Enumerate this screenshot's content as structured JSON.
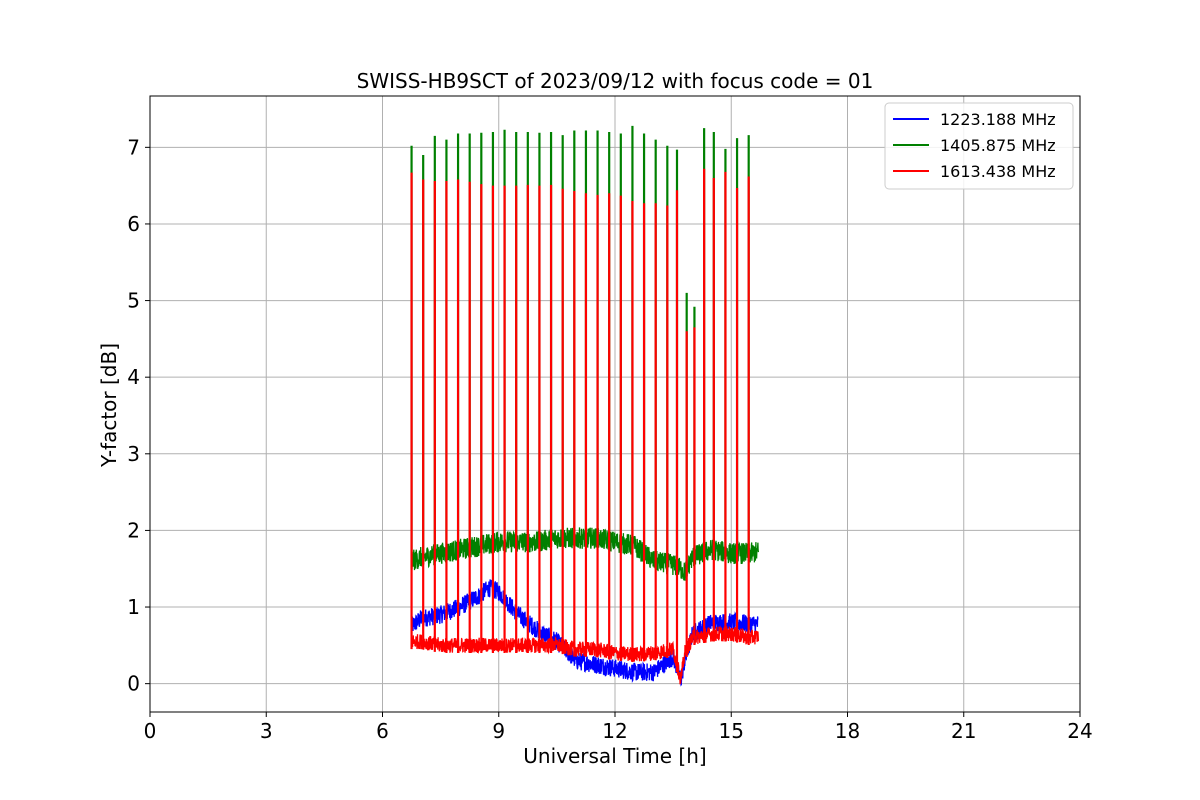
{
  "chart_data": {
    "type": "line",
    "title": "SWISS-HB9SCT of 2023/09/12 with focus code = 01",
    "xlabel": "Universal Time [h]",
    "ylabel": "Y-factor [dB]",
    "xlim": [
      0,
      24
    ],
    "ylim": [
      -0.37,
      7.67
    ],
    "xticks": [
      0,
      3,
      6,
      9,
      12,
      15,
      18,
      21,
      24
    ],
    "yticks": [
      0,
      1,
      2,
      3,
      4,
      5,
      6,
      7
    ],
    "grid": true,
    "legend_position": "top-right",
    "series": [
      {
        "name": "1223.188 MHz",
        "color": "#0000ff",
        "x": [
          6.75,
          7.0,
          7.5,
          8.0,
          8.5,
          8.75,
          9.0,
          9.5,
          10.0,
          10.5,
          11.0,
          11.5,
          12.0,
          12.5,
          13.0,
          13.5,
          13.7,
          13.8,
          14.0,
          14.5,
          15.0,
          15.5,
          15.7
        ],
        "values": [
          0.75,
          0.85,
          0.9,
          1.0,
          1.15,
          1.25,
          1.2,
          0.9,
          0.7,
          0.55,
          0.3,
          0.25,
          0.2,
          0.15,
          0.15,
          0.35,
          0.05,
          0.3,
          0.65,
          0.8,
          0.8,
          0.78,
          0.78
        ]
      },
      {
        "name": "1405.875 MHz",
        "color": "#008000",
        "x": [
          6.75,
          7.0,
          7.5,
          8.0,
          8.5,
          9.0,
          9.5,
          10.0,
          10.5,
          11.0,
          11.5,
          12.0,
          12.5,
          13.0,
          13.5,
          13.7,
          13.8,
          14.0,
          14.5,
          15.0,
          15.5,
          15.7
        ],
        "values": [
          1.6,
          1.65,
          1.7,
          1.75,
          1.8,
          1.85,
          1.85,
          1.85,
          1.9,
          1.9,
          1.9,
          1.85,
          1.8,
          1.6,
          1.55,
          1.5,
          1.45,
          1.65,
          1.75,
          1.7,
          1.7,
          1.72
        ]
      },
      {
        "name": "1613.438 MHz",
        "color": "#ff0000",
        "x": [
          6.75,
          7.0,
          7.5,
          8.0,
          8.5,
          9.0,
          9.5,
          10.0,
          10.5,
          11.0,
          11.5,
          12.0,
          12.5,
          13.0,
          13.5,
          13.7,
          13.8,
          14.0,
          14.5,
          15.0,
          15.5,
          15.7
        ],
        "values": [
          0.55,
          0.55,
          0.5,
          0.5,
          0.5,
          0.5,
          0.5,
          0.5,
          0.5,
          0.45,
          0.45,
          0.4,
          0.38,
          0.4,
          0.45,
          0.05,
          0.4,
          0.6,
          0.65,
          0.65,
          0.6,
          0.62
        ]
      }
    ],
    "calibration_spikes": {
      "times": [
        6.75,
        7.05,
        7.35,
        7.65,
        7.95,
        8.25,
        8.55,
        8.85,
        9.15,
        9.45,
        9.75,
        10.05,
        10.35,
        10.65,
        10.95,
        11.25,
        11.55,
        11.85,
        12.15,
        12.45,
        12.75,
        13.05,
        13.35,
        13.6,
        13.85,
        14.05,
        14.3,
        14.55,
        14.85,
        15.15,
        15.45
      ],
      "green_peaks": [
        7.02,
        6.9,
        7.15,
        7.1,
        7.18,
        7.18,
        7.19,
        7.2,
        7.23,
        7.2,
        7.2,
        7.19,
        7.2,
        7.16,
        7.22,
        7.22,
        7.22,
        7.2,
        7.18,
        7.28,
        7.18,
        7.1,
        7.02,
        6.97,
        5.1,
        4.92,
        7.25,
        7.2,
        6.98,
        7.12,
        7.16
      ],
      "red_peaks": [
        6.67,
        6.58,
        6.56,
        6.56,
        6.58,
        6.55,
        6.52,
        6.5,
        6.5,
        6.5,
        6.51,
        6.5,
        6.51,
        6.46,
        6.43,
        6.4,
        6.38,
        6.4,
        6.37,
        6.3,
        6.27,
        6.27,
        6.24,
        6.44,
        4.6,
        4.65,
        6.72,
        6.6,
        6.68,
        6.47,
        6.62
      ]
    }
  }
}
